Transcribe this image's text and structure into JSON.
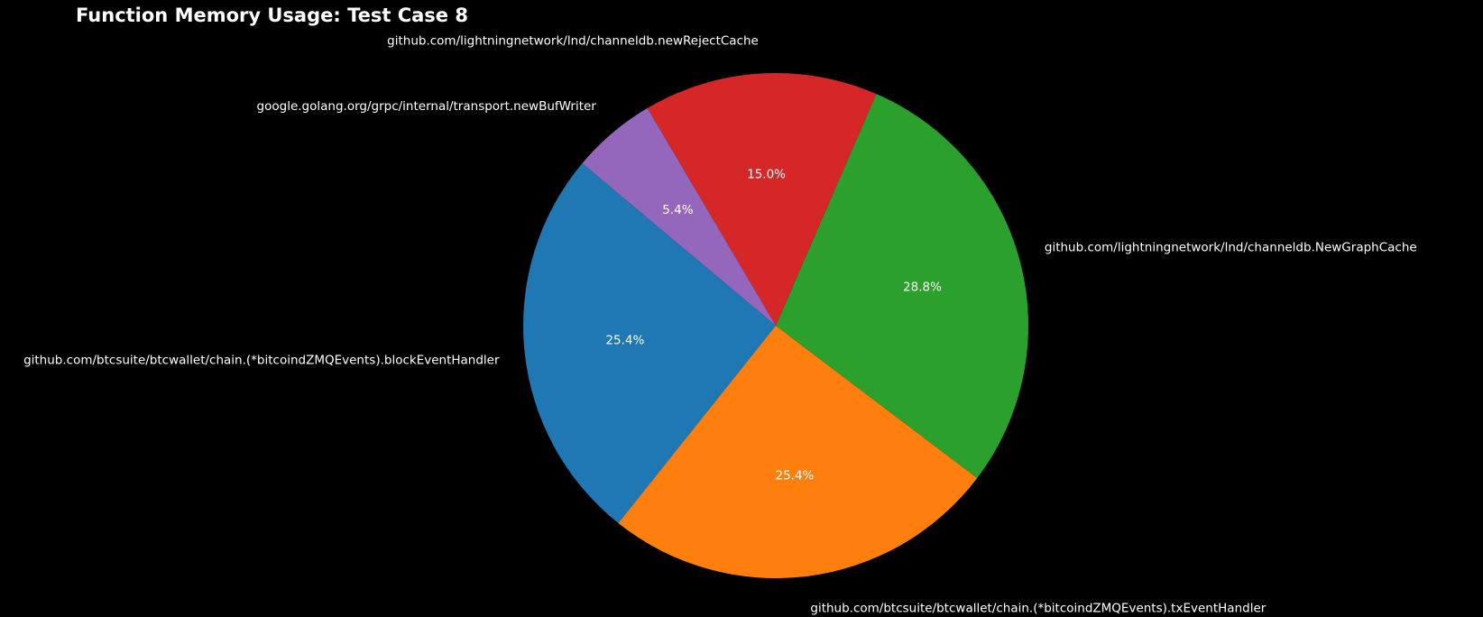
{
  "chart_data": {
    "type": "pie",
    "title": "Function Memory Usage: Test Case 8",
    "slices": [
      {
        "label": "github.com/btcsuite/btcwallet/chain.(*bitcoindZMQEvents).blockEventHandler",
        "value": 25.4,
        "pct_label": "25.4%",
        "color": "#1f77b4"
      },
      {
        "label": "github.com/btcsuite/btcwallet/chain.(*bitcoindZMQEvents).txEventHandler",
        "value": 25.4,
        "pct_label": "25.4%",
        "color": "#ff7f0e"
      },
      {
        "label": "github.com/lightningnetwork/lnd/channeldb.NewGraphCache",
        "value": 28.8,
        "pct_label": "28.8%",
        "color": "#2ca02c"
      },
      {
        "label": "github.com/lightningnetwork/lnd/channeldb.newRejectCache",
        "value": 15.0,
        "pct_label": "15.0%",
        "color": "#d62728"
      },
      {
        "label": "google.golang.org/grpc/internal/transport.newBufWriter",
        "value": 5.4,
        "pct_label": "5.4%",
        "color": "#9467bd"
      }
    ],
    "start_angle_deg": 140,
    "direction": "counterclockwise",
    "legend": "none",
    "background": "#000000",
    "text_color": "#ffffff"
  }
}
